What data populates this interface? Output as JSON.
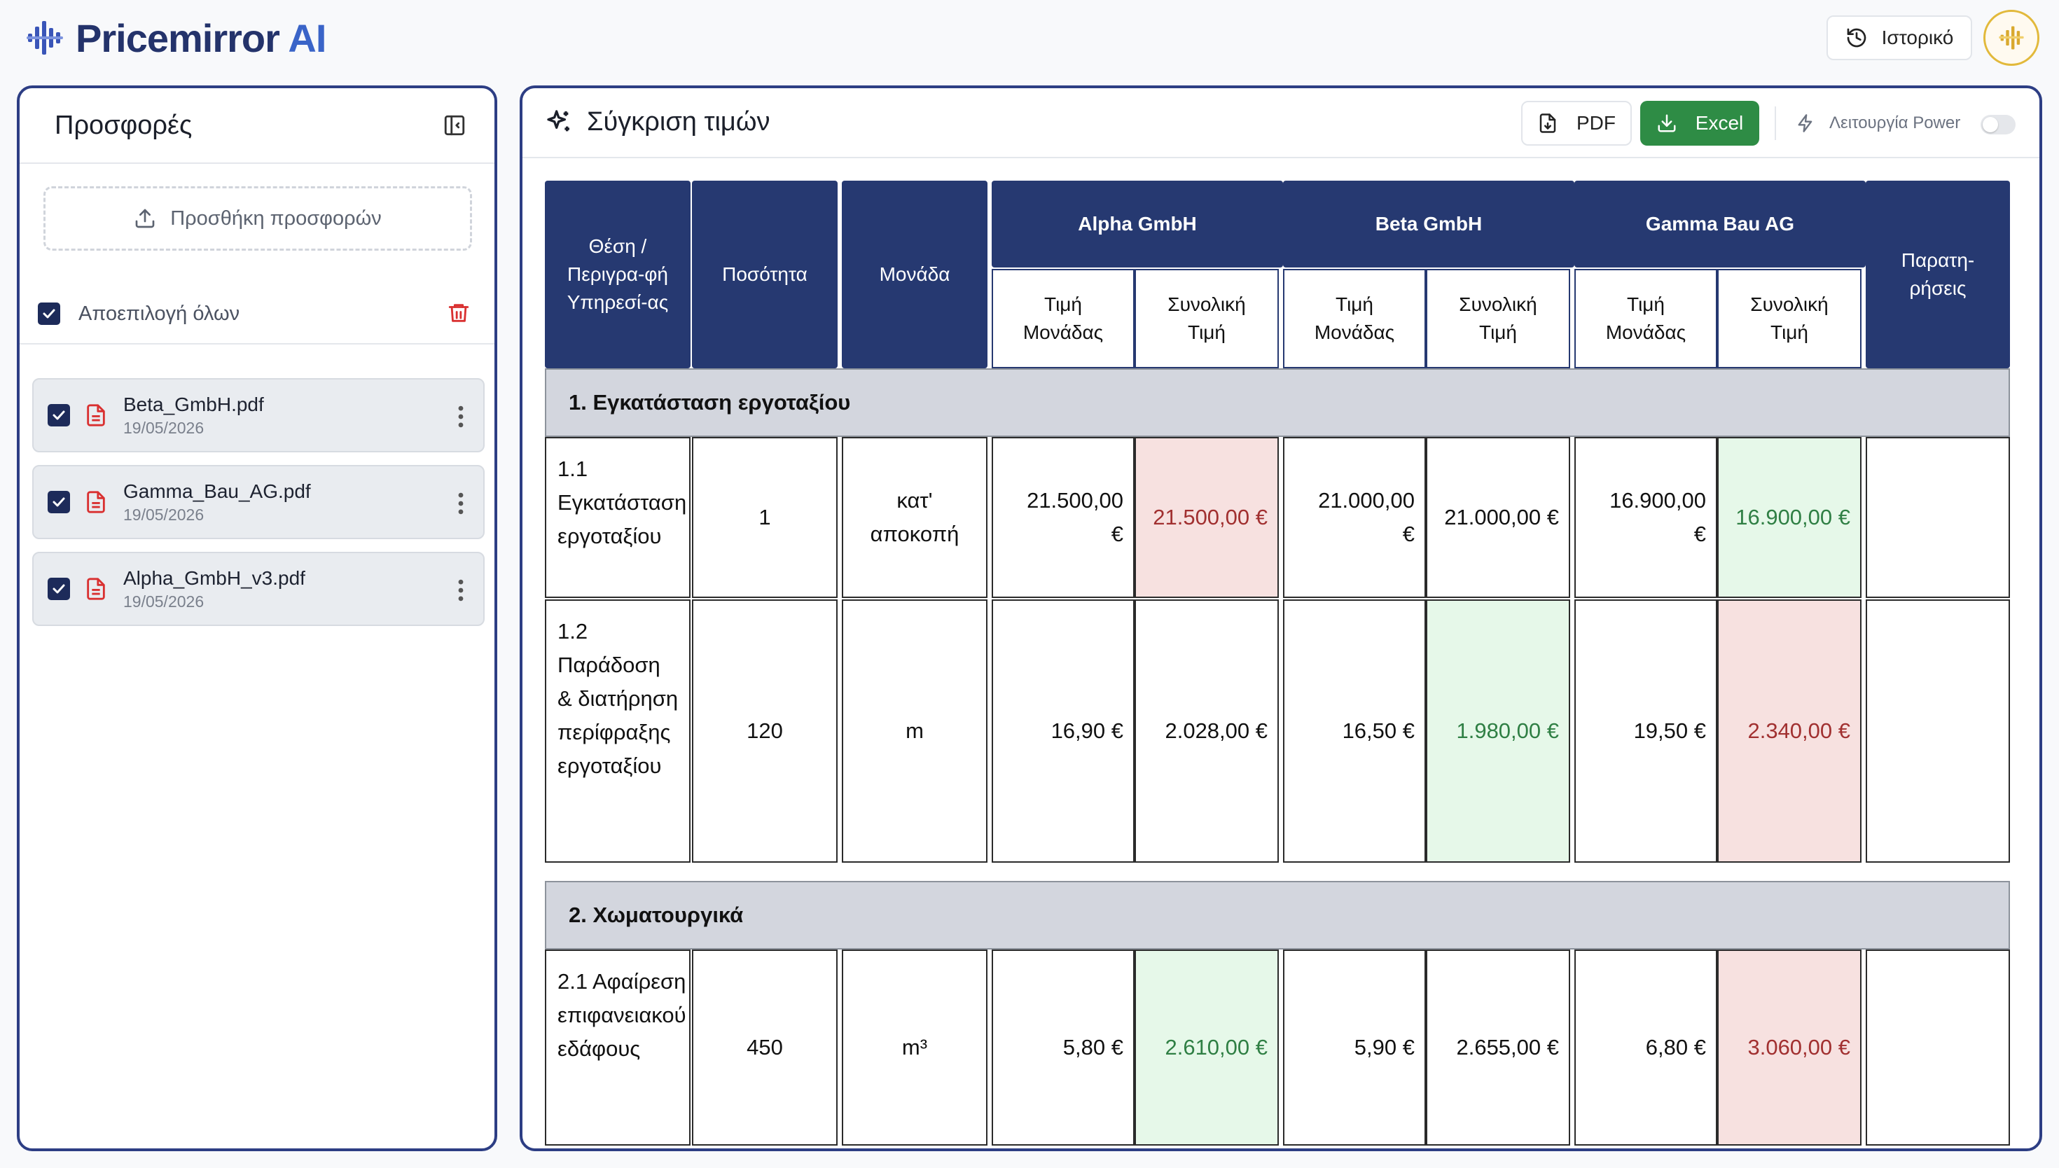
{
  "brand": {
    "name_part1": "Pricemirror",
    "name_part2": "AI"
  },
  "header": {
    "history_label": "Ιστορικό"
  },
  "sidebar": {
    "title": "Προσφορές",
    "upload_label": "Προσθήκη προσφορών",
    "deselect_all_label": "Αποεπιλογή όλων",
    "files": [
      {
        "name": "Beta_GmbH.pdf",
        "date": "19/05/2026",
        "checked": true
      },
      {
        "name": "Gamma_Bau_AG.pdf",
        "date": "19/05/2026",
        "checked": true
      },
      {
        "name": "Alpha_GmbH_v3.pdf",
        "date": "19/05/2026",
        "checked": true
      }
    ]
  },
  "main": {
    "title": "Σύγκριση τιμών",
    "pdf_label": "PDF",
    "excel_label": "Excel",
    "power_label": "Λειτουργία Power",
    "power_enabled": false,
    "table": {
      "headers": {
        "position": "Θέση / Περιγρα-φή Υπηρεσί-ας",
        "quantity": "Ποσότητα",
        "unit": "Μονάδα",
        "unit_price": "Τιμή Μονάδας",
        "total_price": "Συνολική Τιμή",
        "remarks": "Παρατη-ρήσεις"
      },
      "vendors": [
        "Alpha GmbH",
        "Beta GmbH",
        "Gamma Bau AG"
      ],
      "sections": [
        {
          "title": "1. Εγκατάσταση εργοταξίου",
          "rows": [
            {
              "description": "1.1 Εγκατάσταση εργοταξίου",
              "quantity": "1",
              "unit": "κατ' αποκοπή",
              "prices": [
                {
                  "unit": "21.500,00 €",
                  "total": "21.500,00 €",
                  "flag": "max"
                },
                {
                  "unit": "21.000,00 €",
                  "total": "21.000,00 €",
                  "flag": ""
                },
                {
                  "unit": "16.900,00 €",
                  "total": "16.900,00 €",
                  "flag": "min"
                }
              ],
              "remarks": ""
            },
            {
              "description": "1.2 Παράδοση & διατήρηση περίφραξης εργοταξίου",
              "quantity": "120",
              "unit": "m",
              "prices": [
                {
                  "unit": "16,90 €",
                  "total": "2.028,00 €",
                  "flag": ""
                },
                {
                  "unit": "16,50 €",
                  "total": "1.980,00 €",
                  "flag": "min"
                },
                {
                  "unit": "19,50 €",
                  "total": "2.340,00 €",
                  "flag": "max"
                }
              ],
              "remarks": ""
            }
          ]
        },
        {
          "title": "2. Χωματουργικά",
          "rows": [
            {
              "description": "2.1 Αφαίρεση επιφανειακού εδάφους",
              "quantity": "450",
              "unit": "m³",
              "prices": [
                {
                  "unit": "5,80 €",
                  "total": "2.610,00 €",
                  "flag": "min"
                },
                {
                  "unit": "5,90 €",
                  "total": "2.655,00 €",
                  "flag": ""
                },
                {
                  "unit": "6,80 €",
                  "total": "3.060,00 €",
                  "flag": "max"
                }
              ],
              "remarks": ""
            }
          ]
        }
      ]
    }
  },
  "colors": {
    "accent": "#263971",
    "excel": "#2e8c45",
    "min_bg": "#e6f8e9",
    "max_bg": "#f7e1e0"
  }
}
